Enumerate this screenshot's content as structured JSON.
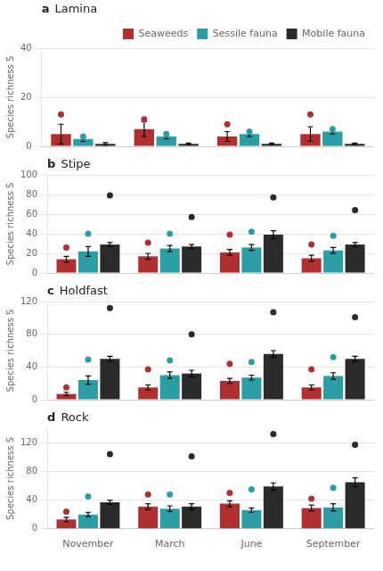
{
  "chart_data": [
    {
      "type": "bar",
      "title": "Lamina",
      "annotations": [
        "a"
      ],
      "ylabel": "Species richness S",
      "categories": [
        "November",
        "March",
        "June",
        "September"
      ],
      "series": [
        {
          "name": "Seaweeds",
          "color": "#B03030",
          "values": [
            5,
            7,
            4,
            5
          ],
          "errors": [
            4,
            3,
            2,
            3
          ],
          "dots": [
            13,
            11,
            9,
            13
          ]
        },
        {
          "name": "Sessile fauna",
          "color": "#2A9DA5",
          "values": [
            3,
            4,
            5,
            6
          ],
          "errors": [
            1,
            1,
            1,
            1
          ],
          "dots": [
            4,
            5,
            6,
            7
          ]
        },
        {
          "name": "Mobile fauna",
          "color": "#2A2A2A",
          "values": [
            1,
            1,
            1,
            1
          ],
          "errors": [
            0.5,
            0.3,
            0.3,
            0.3
          ],
          "dots": [
            null,
            null,
            null,
            null
          ]
        }
      ],
      "ylim": [
        0,
        40
      ],
      "yticks": [
        0,
        20,
        40
      ],
      "grid": "y",
      "legend": "upper right",
      "tick_labels": "y"
    },
    {
      "type": "bar",
      "title": "Stipe",
      "annotations": [
        "b"
      ],
      "ylabel": "Species richness S",
      "categories": [
        "November",
        "March",
        "June",
        "September"
      ],
      "series": [
        {
          "name": "Seaweeds",
          "color": "#B03030",
          "values": [
            14,
            17,
            21,
            15
          ],
          "errors": [
            3,
            3,
            3,
            3
          ],
          "dots": [
            26,
            31,
            39,
            29
          ]
        },
        {
          "name": "Sessile fauna",
          "color": "#2A9DA5",
          "values": [
            22,
            25,
            26,
            23
          ],
          "errors": [
            5,
            3,
            3,
            3
          ],
          "dots": [
            40,
            40,
            42,
            38
          ]
        },
        {
          "name": "Mobile fauna",
          "color": "#2A2A2A",
          "values": [
            29,
            27,
            39,
            29
          ],
          "errors": [
            2,
            2,
            4,
            2
          ],
          "dots": [
            79,
            57,
            77,
            64
          ]
        }
      ],
      "ylim": [
        0,
        100
      ],
      "yticks": [
        0,
        20,
        40,
        60,
        80,
        100
      ],
      "grid": "y",
      "tick_labels": "y"
    },
    {
      "type": "bar",
      "title": "Holdfast",
      "annotations": [
        "c"
      ],
      "ylabel": "Species richness S",
      "categories": [
        "November",
        "March",
        "June",
        "September"
      ],
      "series": [
        {
          "name": "Seaweeds",
          "color": "#B03030",
          "values": [
            7,
            15,
            23,
            15
          ],
          "errors": [
            2,
            3,
            3,
            3
          ],
          "dots": [
            15,
            37,
            44,
            37
          ]
        },
        {
          "name": "Sessile fauna",
          "color": "#2A9DA5",
          "values": [
            24,
            30,
            27,
            29
          ],
          "errors": [
            5,
            4,
            3,
            4
          ],
          "dots": [
            49,
            48,
            46,
            52
          ]
        },
        {
          "name": "Mobile fauna",
          "color": "#2A2A2A",
          "values": [
            50,
            32,
            56,
            50
          ],
          "errors": [
            3,
            4,
            4,
            3
          ],
          "dots": [
            112,
            80,
            107,
            101
          ]
        }
      ],
      "ylim": [
        0,
        120
      ],
      "yticks": [
        0,
        40,
        80,
        120
      ],
      "grid": "y",
      "tick_labels": "y"
    },
    {
      "type": "bar",
      "title": "Rock",
      "annotations": [
        "d"
      ],
      "ylabel": "Species richness S",
      "categories": [
        "November",
        "March",
        "June",
        "September"
      ],
      "series": [
        {
          "name": "Seaweeds",
          "color": "#B03030",
          "values": [
            13,
            31,
            35,
            29
          ],
          "errors": [
            3,
            4,
            4,
            4
          ],
          "dots": [
            24,
            48,
            50,
            42
          ]
        },
        {
          "name": "Sessile fauna",
          "color": "#2A9DA5",
          "values": [
            20,
            28,
            26,
            30
          ],
          "errors": [
            3,
            4,
            3,
            5
          ],
          "dots": [
            45,
            48,
            55,
            57
          ]
        },
        {
          "name": "Mobile fauna",
          "color": "#2A2A2A",
          "values": [
            37,
            31,
            59,
            65
          ],
          "errors": [
            3,
            4,
            5,
            6
          ],
          "dots": [
            104,
            101,
            132,
            117
          ]
        }
      ],
      "ylim": [
        0,
        140
      ],
      "yticks": [
        0,
        40,
        80,
        120
      ],
      "grid": "y"
    }
  ]
}
